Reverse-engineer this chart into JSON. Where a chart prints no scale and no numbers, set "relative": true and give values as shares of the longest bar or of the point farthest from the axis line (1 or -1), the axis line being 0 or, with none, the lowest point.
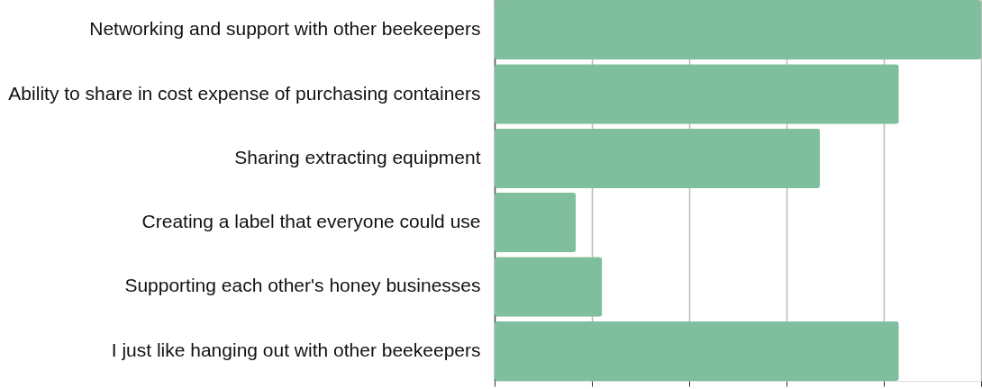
{
  "chart_data": {
    "type": "bar",
    "orientation": "horizontal",
    "relative": true,
    "grid": "x",
    "tick_labels": "y",
    "categories": [
      "Networking and support with other beekeepers",
      "Ability to share in cost expense of purchasing containers",
      "Sharing extracting equipment",
      "Creating a label that everyone could use",
      "Supporting each other's honey businesses",
      "I just like hanging out with other beekeepers"
    ],
    "values": [
      1,
      0.831,
      0.669,
      0.167,
      0.221,
      0.831
    ],
    "color": "#7fbf9d"
  }
}
